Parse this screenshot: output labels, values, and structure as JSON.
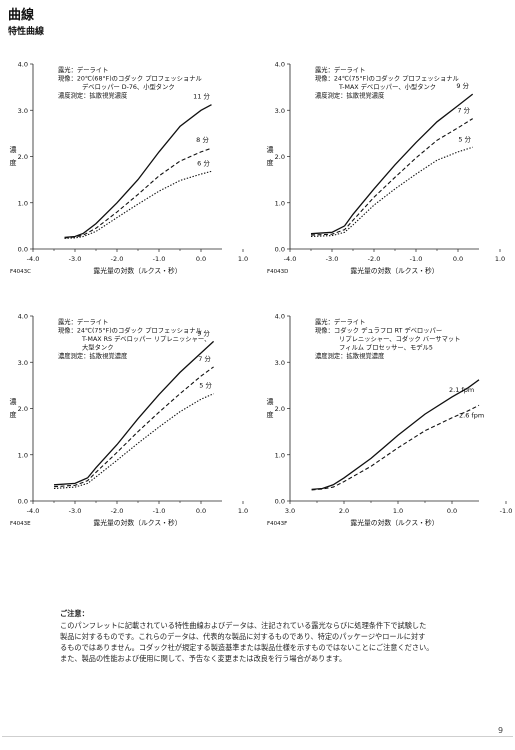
{
  "page": {
    "title": "曲線",
    "subtitle": "特性曲線",
    "notes_title": "ご注意：",
    "notes_lines": [
      "このパンフレットに記載されている特性曲線およびデータは、注記されている露光ならびに処理条件下で試験した",
      "製品に対するものです。これらのデータは、代表的な製品に対するものであり、特定のパッケージやロールに対す",
      "るものではありません。コダック社が規定する製造基準または製品仕様を示すものではないことにご注意ください。",
      "また、製品の性能および使用に関して、予告なく変更または改良を行う場合があります。"
    ],
    "page_number": "9"
  },
  "chart_data": [
    {
      "type": "line",
      "id": "F4043C",
      "code": "F4043C",
      "info_lines": [
        "露光：デーライト",
        "現像：20℃(68°F)のコダック プロフェッショナル",
        "デベロッパー D-76、小型タンク",
        "濃度測定：拡散視覚濃度"
      ],
      "xlabel": "露光量の対数（ルクス・秒）",
      "ylabel": "濃度",
      "xlim": [
        -4.0,
        0.5
      ],
      "ylim": [
        0.0,
        4.0
      ],
      "x_ticks": [
        "-4.0",
        "-3.0",
        "-2.0",
        "-1.0",
        "0.0",
        "1.0"
      ],
      "y_ticks": [
        "0.0",
        "1.0",
        "2.0",
        "3.0",
        "4.0"
      ],
      "series": [
        {
          "name": "11 分",
          "style": "solid",
          "points": [
            [
              -3.25,
              0.25
            ],
            [
              -3.0,
              0.27
            ],
            [
              -2.8,
              0.34
            ],
            [
              -2.5,
              0.55
            ],
            [
              -2.0,
              1.0
            ],
            [
              -1.5,
              1.5
            ],
            [
              -1.0,
              2.1
            ],
            [
              -0.5,
              2.65
            ],
            [
              0.0,
              3.0
            ],
            [
              0.25,
              3.12
            ]
          ]
        },
        {
          "name": "8 分",
          "style": "dashed",
          "points": [
            [
              -3.25,
              0.24
            ],
            [
              -3.0,
              0.26
            ],
            [
              -2.8,
              0.3
            ],
            [
              -2.5,
              0.45
            ],
            [
              -2.0,
              0.8
            ],
            [
              -1.5,
              1.18
            ],
            [
              -1.0,
              1.58
            ],
            [
              -0.5,
              1.9
            ],
            [
              0.0,
              2.1
            ],
            [
              0.25,
              2.18
            ]
          ]
        },
        {
          "name": "6 分",
          "style": "dotted",
          "points": [
            [
              -3.25,
              0.23
            ],
            [
              -3.0,
              0.24
            ],
            [
              -2.8,
              0.27
            ],
            [
              -2.5,
              0.38
            ],
            [
              -2.0,
              0.68
            ],
            [
              -1.5,
              0.97
            ],
            [
              -1.0,
              1.25
            ],
            [
              -0.5,
              1.48
            ],
            [
              0.0,
              1.62
            ],
            [
              0.25,
              1.68
            ]
          ]
        }
      ]
    },
    {
      "type": "line",
      "id": "F4043D",
      "code": "F4043D",
      "info_lines": [
        "露光：デーライト",
        "現像：24℃(75°F)のコダック プロフェッショナル",
        "T-MAX デベロッパー、小型タンク",
        "濃度測定：拡散視覚濃度"
      ],
      "xlabel": "露光量の対数（ルクス・秒）",
      "ylabel": "濃度",
      "xlim": [
        -4.0,
        0.5
      ],
      "ylim": [
        0.0,
        4.0
      ],
      "x_ticks": [
        "-4.0",
        "-3.0",
        "-2.0",
        "-1.0",
        "0.0",
        "1.0"
      ],
      "y_ticks": [
        "0.0",
        "1.0",
        "2.0",
        "3.0",
        "4.0"
      ],
      "series": [
        {
          "name": "9 分",
          "style": "solid",
          "points": [
            [
              -3.5,
              0.33
            ],
            [
              -3.0,
              0.36
            ],
            [
              -2.7,
              0.5
            ],
            [
              -2.5,
              0.75
            ],
            [
              -2.0,
              1.3
            ],
            [
              -1.5,
              1.82
            ],
            [
              -1.0,
              2.3
            ],
            [
              -0.5,
              2.75
            ],
            [
              0.0,
              3.1
            ],
            [
              0.35,
              3.35
            ]
          ]
        },
        {
          "name": "7 分",
          "style": "dashed",
          "points": [
            [
              -3.5,
              0.3
            ],
            [
              -3.0,
              0.32
            ],
            [
              -2.7,
              0.42
            ],
            [
              -2.5,
              0.62
            ],
            [
              -2.0,
              1.12
            ],
            [
              -1.5,
              1.55
            ],
            [
              -1.0,
              1.97
            ],
            [
              -0.5,
              2.35
            ],
            [
              0.0,
              2.62
            ],
            [
              0.35,
              2.82
            ]
          ]
        },
        {
          "name": "5 分",
          "style": "dotted",
          "points": [
            [
              -3.5,
              0.27
            ],
            [
              -3.0,
              0.29
            ],
            [
              -2.7,
              0.36
            ],
            [
              -2.5,
              0.52
            ],
            [
              -2.0,
              0.95
            ],
            [
              -1.5,
              1.3
            ],
            [
              -1.0,
              1.62
            ],
            [
              -0.5,
              1.92
            ],
            [
              0.0,
              2.1
            ],
            [
              0.35,
              2.2
            ]
          ]
        }
      ]
    },
    {
      "type": "line",
      "id": "F4043E",
      "code": "F4043E",
      "info_lines": [
        "露光：デーライト",
        "現像：24℃(75°F)のコダック プロフェッショナル",
        "T-MAX RS デベロッパー リプレニッシャー、",
        "大型タンク",
        "濃度測定：拡散視覚濃度"
      ],
      "xlabel": "露光量の対数（ルクス・秒）",
      "ylabel": "濃度",
      "xlim": [
        -4.0,
        0.5
      ],
      "ylim": [
        0.0,
        4.0
      ],
      "x_ticks": [
        "-4.0",
        "-3.0",
        "-2.0",
        "-1.0",
        "0.0",
        "1.0"
      ],
      "y_ticks": [
        "0.0",
        "1.0",
        "2.0",
        "3.0",
        "4.0"
      ],
      "series": [
        {
          "name": "9 分",
          "style": "solid",
          "points": [
            [
              -3.5,
              0.35
            ],
            [
              -3.0,
              0.38
            ],
            [
              -2.7,
              0.5
            ],
            [
              -2.5,
              0.72
            ],
            [
              -2.0,
              1.22
            ],
            [
              -1.5,
              1.78
            ],
            [
              -1.0,
              2.3
            ],
            [
              -0.5,
              2.78
            ],
            [
              0.0,
              3.2
            ],
            [
              0.3,
              3.45
            ]
          ]
        },
        {
          "name": "7 分",
          "style": "dashed",
          "points": [
            [
              -3.5,
              0.31
            ],
            [
              -3.0,
              0.34
            ],
            [
              -2.7,
              0.44
            ],
            [
              -2.5,
              0.62
            ],
            [
              -2.0,
              1.05
            ],
            [
              -1.5,
              1.5
            ],
            [
              -1.0,
              1.92
            ],
            [
              -0.5,
              2.32
            ],
            [
              0.0,
              2.7
            ],
            [
              0.3,
              2.9
            ]
          ]
        },
        {
          "name": "5 分",
          "style": "dotted",
          "points": [
            [
              -3.5,
              0.27
            ],
            [
              -3.0,
              0.3
            ],
            [
              -2.7,
              0.38
            ],
            [
              -2.5,
              0.52
            ],
            [
              -2.0,
              0.88
            ],
            [
              -1.5,
              1.25
            ],
            [
              -1.0,
              1.6
            ],
            [
              -0.5,
              1.93
            ],
            [
              0.0,
              2.2
            ],
            [
              0.3,
              2.32
            ]
          ]
        }
      ]
    },
    {
      "type": "line",
      "id": "F4043F",
      "code": "F4043F",
      "info_lines": [
        "露光：デーライト",
        "現像：コダック デュラフロ RT デベロッパー",
        "リプレニッシャー、コダック バーサマット",
        "フィルム プロセッサー、モデル5",
        "濃度測定：拡散視覚濃度"
      ],
      "xlabel": "露光量の対数（ルクス・秒）",
      "ylabel": "濃度",
      "xlim": [
        3.0,
        -0.5
      ],
      "ylim": [
        0.0,
        4.0
      ],
      "x_ticks": [
        "3.0",
        "2.0",
        "1.0",
        "0.0",
        "-1.0"
      ],
      "y_ticks": [
        "0.0",
        "1.0",
        "2.0",
        "3.0",
        "4.0"
      ],
      "series": [
        {
          "name": "2.1 fpm",
          "style": "solid",
          "points": [
            [
              2.6,
              0.25
            ],
            [
              2.4,
              0.27
            ],
            [
              2.2,
              0.35
            ],
            [
              2.0,
              0.5
            ],
            [
              1.5,
              0.92
            ],
            [
              1.0,
              1.42
            ],
            [
              0.5,
              1.88
            ],
            [
              0.0,
              2.25
            ],
            [
              -0.3,
              2.45
            ],
            [
              -0.5,
              2.62
            ]
          ]
        },
        {
          "name": "2.6 fpm",
          "style": "dashed",
          "points": [
            [
              2.6,
              0.24
            ],
            [
              2.4,
              0.26
            ],
            [
              2.2,
              0.3
            ],
            [
              2.0,
              0.42
            ],
            [
              1.5,
              0.75
            ],
            [
              1.0,
              1.15
            ],
            [
              0.5,
              1.52
            ],
            [
              0.0,
              1.8
            ],
            [
              -0.3,
              1.95
            ],
            [
              -0.5,
              2.07
            ]
          ]
        }
      ]
    }
  ]
}
